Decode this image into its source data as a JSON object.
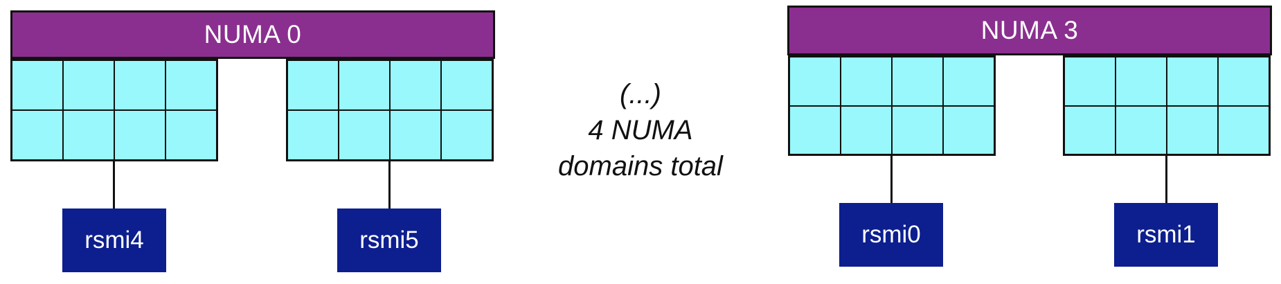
{
  "numa_domains": [
    {
      "label": "NUMA 0",
      "gpus": [
        "rsmi4",
        "rsmi5"
      ]
    },
    {
      "label": "NUMA 3",
      "gpus": [
        "rsmi0",
        "rsmi1"
      ]
    }
  ],
  "note": {
    "line1": "(...)",
    "line2": "4 NUMA",
    "line3": "domains total"
  },
  "colors": {
    "numa_bar": "#8a2f8f",
    "core_fill": "#99f8fb",
    "gpu_fill": "#0d1f8e",
    "outline": "#111111"
  }
}
